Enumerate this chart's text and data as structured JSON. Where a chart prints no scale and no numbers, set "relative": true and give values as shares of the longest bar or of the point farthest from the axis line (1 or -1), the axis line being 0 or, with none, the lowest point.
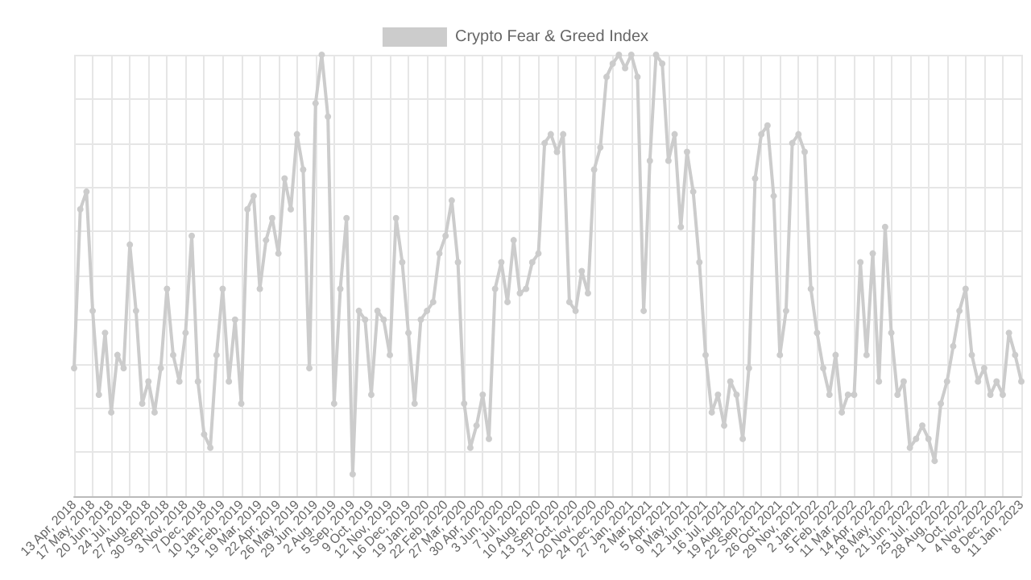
{
  "chart_data": {
    "type": "line",
    "relative": true,
    "grid": true,
    "legend": "top",
    "marker": "circle",
    "line_style": "solid",
    "categories": [
      "13 Apr, 2018",
      null,
      null,
      "17 May, 2018",
      null,
      null,
      "20 Jun, 2018",
      null,
      null,
      "24 Jul, 2018",
      null,
      null,
      "27 Aug, 2018",
      null,
      null,
      "30 Sep, 2018",
      null,
      null,
      "3 Nov, 2018",
      null,
      null,
      "7 Dec, 2018",
      null,
      null,
      "10 Jan, 2019",
      null,
      null,
      "13 Feb, 2019",
      null,
      null,
      "19 Mar, 2019",
      null,
      null,
      "22 Apr, 2019",
      null,
      null,
      "26 May, 2019",
      null,
      null,
      "29 Jun, 2019",
      null,
      null,
      "2 Aug, 2019",
      null,
      null,
      "5 Sep, 2019",
      null,
      null,
      "9 Oct, 2019",
      null,
      null,
      "12 Nov, 2019",
      null,
      null,
      "16 Dec, 2019",
      null,
      null,
      "19 Jan, 2020",
      null,
      null,
      "22 Feb, 2020",
      null,
      null,
      "27 Mar, 2020",
      null,
      null,
      "30 Apr, 2020",
      null,
      null,
      "3 Jun, 2020",
      null,
      null,
      "7 Jul, 2020",
      null,
      null,
      "10 Aug, 2020",
      null,
      null,
      "13 Sep, 2020",
      null,
      null,
      "17 Oct, 2020",
      null,
      null,
      "20 Nov, 2020",
      null,
      null,
      "24 Dec, 2020",
      null,
      null,
      "27 Jan, 2021",
      null,
      null,
      "2 Mar, 2021",
      null,
      null,
      "5 Apr, 2021",
      null,
      null,
      "9 May, 2021",
      null,
      null,
      "12 Jun, 2021",
      null,
      null,
      "16 Jul, 2021",
      null,
      null,
      "19 Aug, 2021",
      null,
      null,
      "22 Sep, 2021",
      null,
      null,
      "26 Oct, 2021",
      null,
      null,
      "29 Nov, 2021",
      null,
      null,
      "2 Jan, 2022",
      null,
      null,
      "5 Feb, 2022",
      null,
      null,
      "11 Mar, 2022",
      null,
      null,
      "14 Apr, 2022",
      null,
      null,
      "18 May, 2022",
      null,
      null,
      "21 Jun, 2022",
      null,
      null,
      "25 Jul, 2022",
      null,
      null,
      "28 Aug, 2022",
      null,
      null,
      "1 Oct, 2022",
      null,
      null,
      "4 Nov, 2022",
      null,
      null,
      "8 Dec, 2022",
      null,
      null,
      "11 Jan, 2023"
    ],
    "series": [
      {
        "name": "Crypto Fear & Greed Index",
        "color": "#cccccc",
        "values": [
          0.29,
          0.65,
          0.69,
          0.42,
          0.23,
          0.37,
          0.19,
          0.32,
          0.29,
          0.57,
          0.42,
          0.21,
          0.26,
          0.19,
          0.29,
          0.47,
          0.32,
          0.26,
          0.37,
          0.59,
          0.26,
          0.14,
          0.11,
          0.32,
          0.47,
          0.26,
          0.4,
          0.21,
          0.65,
          0.68,
          0.47,
          0.58,
          0.63,
          0.55,
          0.72,
          0.65,
          0.82,
          0.74,
          0.29,
          0.89,
          1,
          0.86,
          0.21,
          0.47,
          0.63,
          0.05,
          0.42,
          0.4,
          0.23,
          0.42,
          0.4,
          0.32,
          0.63,
          0.53,
          0.37,
          0.21,
          0.4,
          0.42,
          0.44,
          0.55,
          0.59,
          0.67,
          0.53,
          0.21,
          0.11,
          0.16,
          0.23,
          0.13,
          0.47,
          0.53,
          0.44,
          0.58,
          0.46,
          0.47,
          0.53,
          0.55,
          0.8,
          0.82,
          0.78,
          0.82,
          0.44,
          0.42,
          0.51,
          0.46,
          0.74,
          0.79,
          0.95,
          0.98,
          1,
          0.97,
          1,
          0.95,
          0.42,
          0.76,
          1,
          0.98,
          0.76,
          0.82,
          0.61,
          0.78,
          0.69,
          0.53,
          0.32,
          0.19,
          0.23,
          0.16,
          0.26,
          0.23,
          0.13,
          0.29,
          0.72,
          0.82,
          0.84,
          0.68,
          0.32,
          0.42,
          0.8,
          0.82,
          0.78,
          0.47,
          0.37,
          0.29,
          0.23,
          0.32,
          0.19,
          0.23,
          0.23,
          0.53,
          0.32,
          0.55,
          0.26,
          0.61,
          0.37,
          0.23,
          0.26,
          0.11,
          0.13,
          0.16,
          0.13,
          0.08,
          0.21,
          0.26,
          0.34,
          0.42,
          0.47,
          0.32,
          0.26,
          0.29,
          0.23,
          0.26,
          0.23,
          0.37,
          0.32,
          0.26
        ]
      }
    ]
  }
}
